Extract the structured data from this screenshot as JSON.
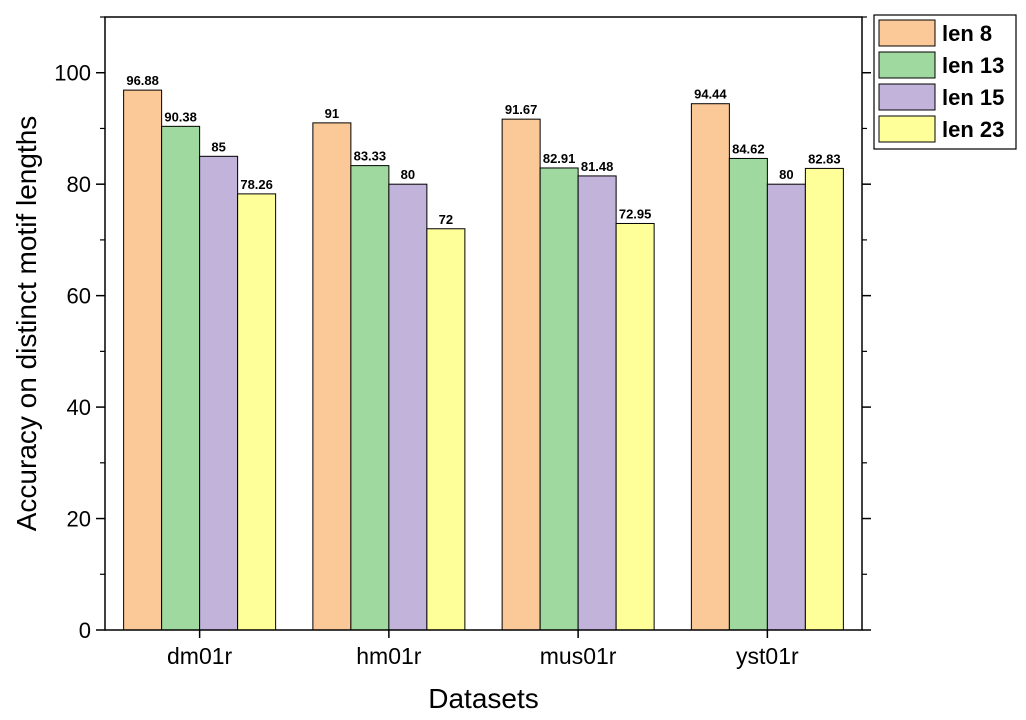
{
  "chart_data": {
    "type": "bar",
    "title": "",
    "xlabel": "Datasets",
    "ylabel": "Accuracy on distinct motif lengths",
    "categories": [
      "dm01r",
      "hm01r",
      "mus01r",
      "yst01r"
    ],
    "series": [
      {
        "name": "len 8",
        "values": [
          96.88,
          91,
          91.67,
          94.44
        ],
        "labels": [
          "96.88",
          "91",
          "91.67",
          "94.44"
        ],
        "color": "#FBC897"
      },
      {
        "name": "len 13",
        "values": [
          90.38,
          83.33,
          82.91,
          84.62
        ],
        "labels": [
          "90.38",
          "83.33",
          "82.91",
          "84.62"
        ],
        "color": "#9FD99F"
      },
      {
        "name": "len 15",
        "values": [
          85,
          80,
          81.48,
          80
        ],
        "labels": [
          "85",
          "80",
          "81.48",
          "80"
        ],
        "color": "#C1B3D9"
      },
      {
        "name": "len 23",
        "values": [
          78.26,
          72,
          72.95,
          82.83
        ],
        "labels": [
          "78.26",
          "72",
          "72.95",
          "82.83"
        ],
        "color": "#FFFF9A"
      }
    ],
    "ylim": [
      0,
      110
    ],
    "yticks": [
      0,
      20,
      40,
      60,
      80,
      100
    ],
    "ytick_labels": [
      "0",
      "20",
      "40",
      "60",
      "80",
      "100"
    ],
    "grid": false,
    "legend_position": "top-right, outside plot"
  }
}
